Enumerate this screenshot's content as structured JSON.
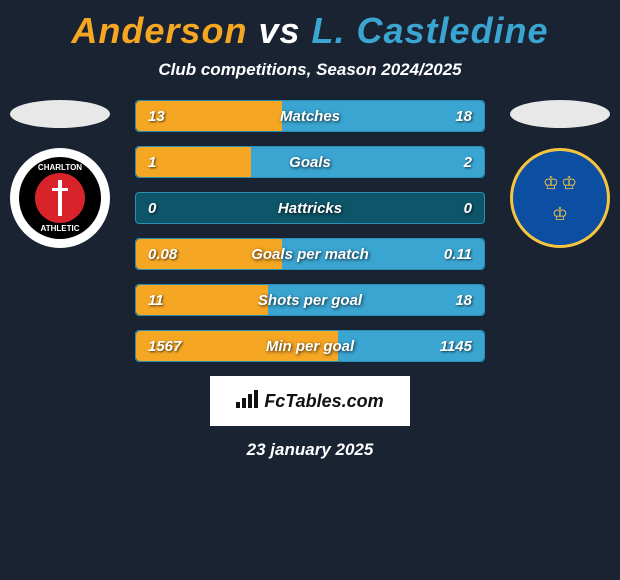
{
  "title": {
    "player1": "Anderson",
    "vs": "vs",
    "player2": "L. Castledine",
    "player1_color": "#f5a623",
    "player2_color": "#3aa5d1"
  },
  "subtitle": "Club competitions, Season 2024/2025",
  "players": {
    "left": {
      "oval_color": "#e8e8e8",
      "badge_text_top": "CHARLTON",
      "badge_text_bottom": "ATHLETIC"
    },
    "right": {
      "oval_color": "#e8e8e8"
    }
  },
  "stats": {
    "row_bg": "#0d5568",
    "border_color": "#2a8fb0",
    "left_bar_color": "#f5a623",
    "right_bar_color": "#3aa5d1",
    "rows": [
      {
        "label": "Matches",
        "left": "13",
        "right": "18",
        "left_pct": 42,
        "right_pct": 58
      },
      {
        "label": "Goals",
        "left": "1",
        "right": "2",
        "left_pct": 33,
        "right_pct": 67
      },
      {
        "label": "Hattricks",
        "left": "0",
        "right": "0",
        "left_pct": 0,
        "right_pct": 0
      },
      {
        "label": "Goals per match",
        "left": "0.08",
        "right": "0.11",
        "left_pct": 42,
        "right_pct": 58
      },
      {
        "label": "Shots per goal",
        "left": "11",
        "right": "18",
        "left_pct": 38,
        "right_pct": 62
      },
      {
        "label": "Min per goal",
        "left": "1567",
        "right": "1145",
        "left_pct": 58,
        "right_pct": 42
      }
    ]
  },
  "logo_text": "FcTables.com",
  "date": "23 january 2025"
}
